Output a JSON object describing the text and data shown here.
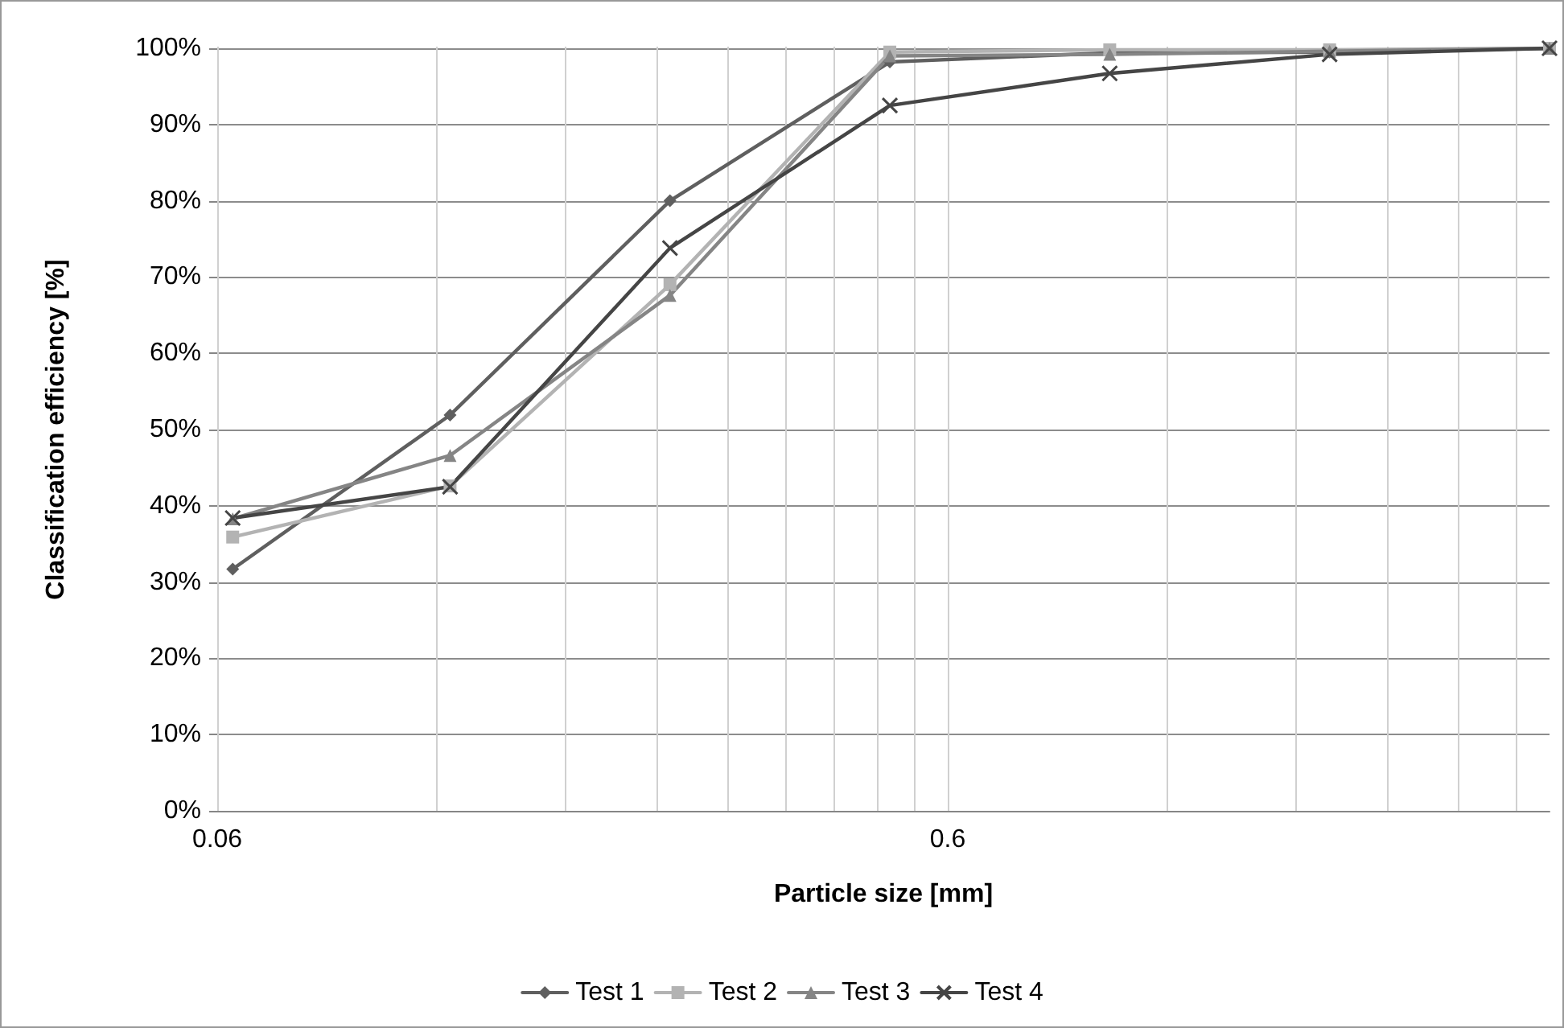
{
  "chart_data": {
    "type": "line",
    "xlabel": "Particle size [mm]",
    "ylabel": "Classification efficiency [%]",
    "x": [
      0.063,
      0.125,
      0.25,
      0.5,
      1,
      2,
      4
    ],
    "series": [
      {
        "name": "Test 1",
        "color": "#5f5f5f",
        "marker": "diamond",
        "values": [
          31.7,
          51.9,
          80,
          98.2,
          99.4,
          99.5,
          100
        ]
      },
      {
        "name": "Test 2",
        "color": "#b3b3b3",
        "marker": "square",
        "values": [
          35.9,
          42.6,
          69,
          99.5,
          99.8,
          99.8,
          100
        ]
      },
      {
        "name": "Test 3",
        "color": "#858585",
        "marker": "triangle",
        "values": [
          38.3,
          46.6,
          67.6,
          99,
          99.2,
          99.6,
          100
        ]
      },
      {
        "name": "Test 4",
        "color": "#454545",
        "marker": "cross",
        "values": [
          38.4,
          42.5,
          73.8,
          92.5,
          96.7,
          99.2,
          100
        ]
      }
    ],
    "log": "x",
    "xlim": [
      0.06,
      4
    ],
    "xticks": [
      0.06,
      {
        "value": 0.12,
        "label": null
      },
      {
        "value": 0.18,
        "label": null
      },
      {
        "value": 0.24,
        "label": null
      },
      {
        "value": 0.3,
        "label": null
      },
      {
        "value": 0.36,
        "label": null
      },
      {
        "value": 0.42,
        "label": null
      },
      {
        "value": 0.48,
        "label": null
      },
      {
        "value": 0.54,
        "label": null
      },
      0.6,
      {
        "value": 1.2,
        "label": null
      },
      {
        "value": 1.8,
        "label": null
      },
      {
        "value": 2.4,
        "label": null
      },
      {
        "value": 3,
        "label": null
      },
      {
        "value": 3.6,
        "label": null
      }
    ],
    "ylim": [
      0,
      100
    ],
    "yticks": [
      {
        "value": 0,
        "label": "0%"
      },
      {
        "value": 10,
        "label": "10%"
      },
      {
        "value": 20,
        "label": "20%"
      },
      {
        "value": 30,
        "label": "30%"
      },
      {
        "value": 40,
        "label": "40%"
      },
      {
        "value": 50,
        "label": "50%"
      },
      {
        "value": 60,
        "label": "60%"
      },
      {
        "value": 70,
        "label": "70%"
      },
      {
        "value": 80,
        "label": "80%"
      },
      {
        "value": 90,
        "label": "90%"
      },
      {
        "value": 100,
        "label": "100%"
      }
    ],
    "grid": true,
    "legend": "bottom",
    "line_style": "solid"
  }
}
